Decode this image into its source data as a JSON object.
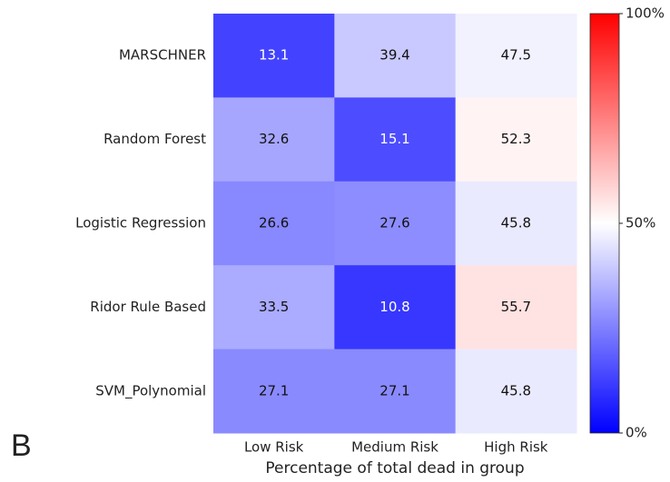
{
  "panel_label": "B",
  "chart_data": {
    "type": "heatmap",
    "x_categories": [
      "Low Risk",
      "Medium Risk",
      "High Risk"
    ],
    "y_categories": [
      "MARSCHNER",
      "Random Forest",
      "Logistic Regression",
      "Ridor Rule Based",
      "SVM_Polynomial"
    ],
    "values": [
      [
        13.1,
        39.4,
        47.5
      ],
      [
        32.6,
        15.1,
        52.3
      ],
      [
        26.6,
        27.6,
        45.8
      ],
      [
        33.5,
        10.8,
        55.7
      ],
      [
        27.1,
        27.1,
        45.8
      ]
    ],
    "xlabel": "Percentage of total dead in group",
    "colormap": "bwr",
    "clim": [
      0,
      100
    ],
    "cticks": [
      {
        "value": 0,
        "label": "0%"
      },
      {
        "value": 50,
        "label": "50%"
      },
      {
        "value": 100,
        "label": "100%"
      }
    ]
  }
}
